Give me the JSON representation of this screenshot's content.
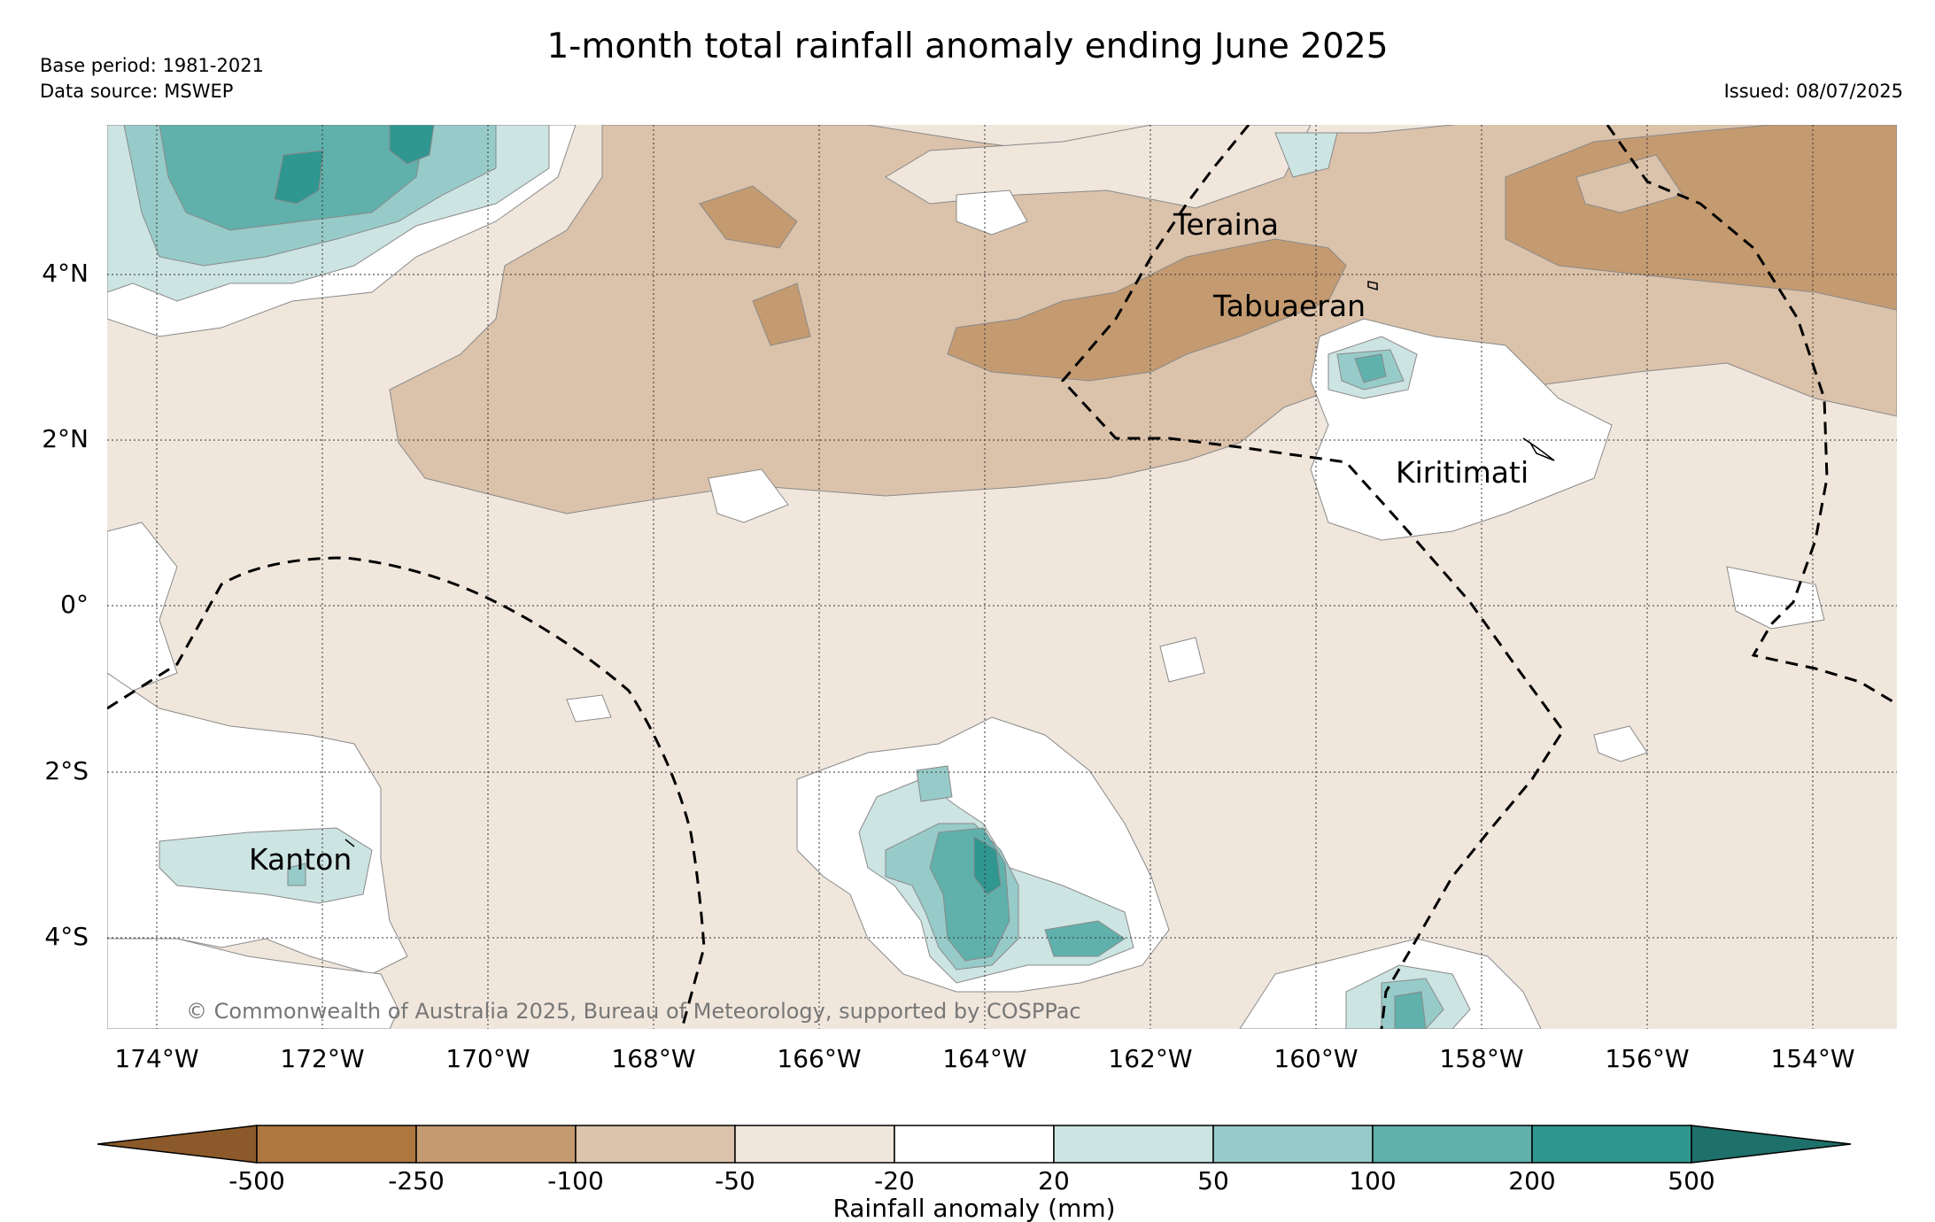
{
  "header": {
    "title": "1-month total rainfall anomaly ending June 2025",
    "base_period": "Base period: 1981-2021",
    "data_source": "Data source: MSWEP",
    "issued": "Issued: 08/07/2025"
  },
  "map": {
    "lat_labels": [
      "4°N",
      "2°N",
      "0°",
      "2°S",
      "4°S"
    ],
    "lon_labels": [
      "174°W",
      "172°W",
      "170°W",
      "168°W",
      "166°W",
      "164°W",
      "162°W",
      "160°W",
      "158°W",
      "156°W",
      "154°W"
    ],
    "places": [
      {
        "id": "teraina",
        "name": "Teraina"
      },
      {
        "id": "tabuaeran",
        "name": "Tabuaeran"
      },
      {
        "id": "kiritimati",
        "name": "Kiritimati"
      },
      {
        "id": "kanton",
        "name": "Kanton"
      }
    ],
    "copyright": "© Commonwealth of Australia 2025, Bureau of Meteorology, supported by COSPPac"
  },
  "colorbar": {
    "label": "Rainfall anomaly (mm)",
    "ticks": [
      "-500",
      "-250",
      "-100",
      "-50",
      "-20",
      "20",
      "50",
      "100",
      "200",
      "500"
    ],
    "colors": [
      "#8c5a2a",
      "#ad7740",
      "#c49a70",
      "#dbc2aa",
      "#f0e6dc",
      "#ffffff",
      "#cce4e2",
      "#97cbc9",
      "#60b0ac",
      "#2f9790",
      "#1e706a"
    ]
  }
}
